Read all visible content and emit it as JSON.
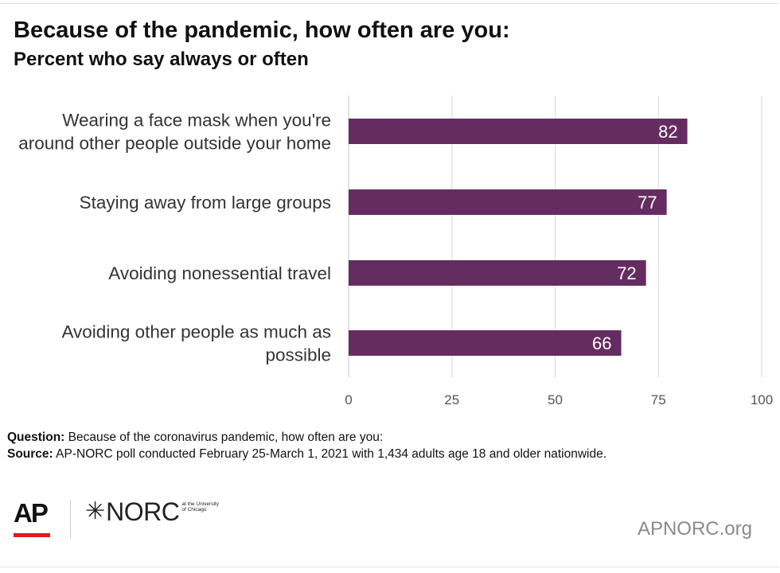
{
  "header": {
    "title": "Because of the pandemic, how often are you:",
    "subtitle": "Percent who say always or often"
  },
  "chart_data": {
    "type": "bar",
    "orientation": "horizontal",
    "categories": [
      [
        "Wearing a face mask when you're",
        "around other people outside your home"
      ],
      [
        "Staying away from large groups"
      ],
      [
        "Avoiding nonessential travel"
      ],
      [
        "Avoiding other people as much as",
        "possible"
      ]
    ],
    "values": [
      82,
      77,
      72,
      66
    ],
    "data_labels": [
      "82",
      "77",
      "72",
      "66"
    ],
    "xlim": [
      0,
      100
    ],
    "xticks": [
      0,
      25,
      50,
      75,
      100
    ],
    "xtick_labels": [
      "0",
      "25",
      "50",
      "75",
      "100"
    ],
    "grid": true,
    "bar_color": "#652c61",
    "label_color": "#ffffff"
  },
  "notes": {
    "question_label": "Question:",
    "question_text": " Because of the coronavirus pandemic, how often are you:",
    "source_label": "Source:",
    "source_text": " AP-NORC poll conducted February 25-March 1, 2021 with 1,434 adults age 18 and older nationwide."
  },
  "footer": {
    "ap_logo": "AP",
    "norc_star": "✳",
    "norc_word": "NORC",
    "norc_small": "at the University of Chicago",
    "site": "APNORC.org"
  }
}
